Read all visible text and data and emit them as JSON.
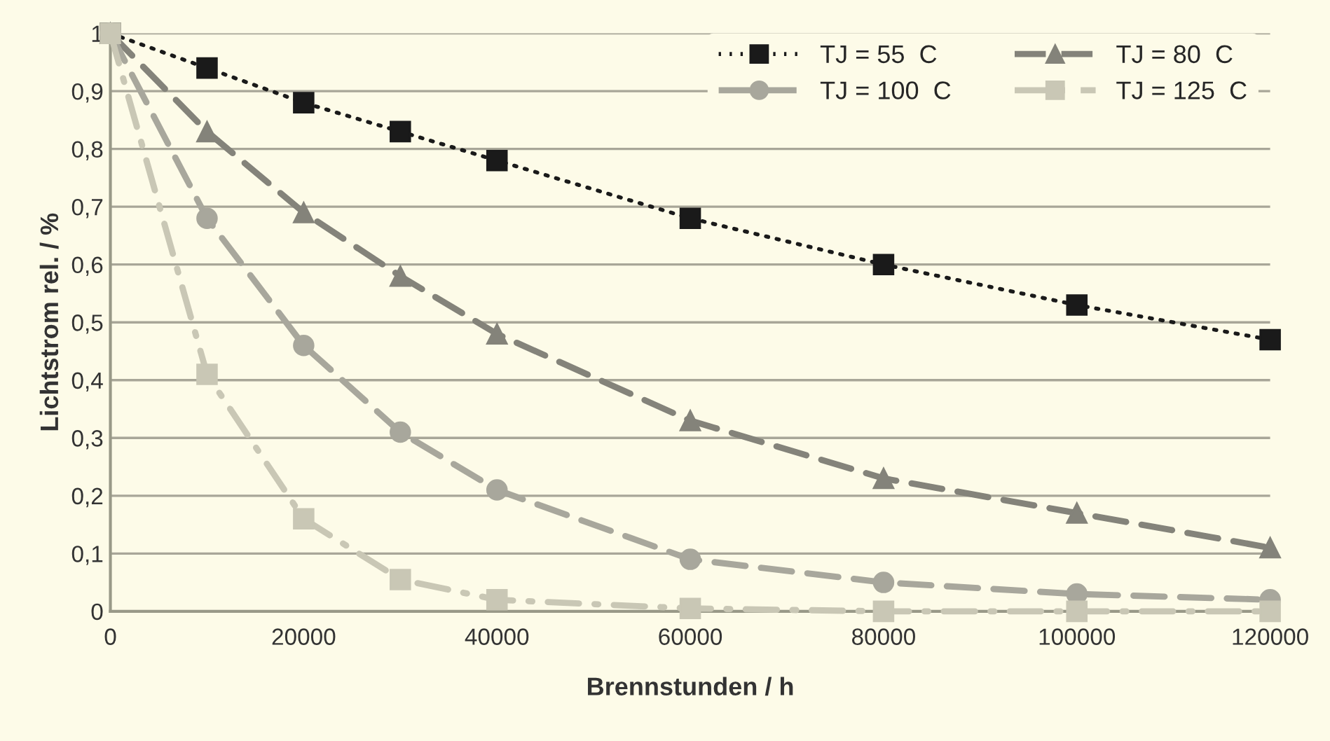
{
  "chart_data": {
    "type": "line",
    "xlabel": "Brennstunden / h",
    "ylabel": "Lichtstrom rel. / %",
    "x": [
      0,
      10000,
      20000,
      30000,
      40000,
      60000,
      80000,
      100000,
      120000
    ],
    "series": [
      {
        "name": "TJ = 55  C",
        "color": "#1a1a1a",
        "marker": "square",
        "line_style": "dotted",
        "values": [
          1,
          0.94,
          0.88,
          0.83,
          0.78,
          0.68,
          0.6,
          0.53,
          0.47
        ]
      },
      {
        "name": "TJ = 80  C",
        "color": "#84837a",
        "marker": "triangle",
        "line_style": "dashed",
        "values": [
          1,
          0.83,
          0.69,
          0.58,
          0.48,
          0.33,
          0.23,
          0.17,
          0.11
        ]
      },
      {
        "name": "TJ = 100  C",
        "color": "#a8a79c",
        "marker": "circle",
        "line_style": "dashed",
        "values": [
          1,
          0.68,
          0.46,
          0.31,
          0.21,
          0.09,
          0.05,
          0.03,
          0.02
        ]
      },
      {
        "name": "TJ = 125  C",
        "color": "#c9c7b5",
        "marker": "square",
        "line_style": "dashdot",
        "values": [
          1,
          0.41,
          0.16,
          0.055,
          0.02,
          0.005,
          0,
          0,
          0
        ]
      }
    ],
    "xlim": [
      0,
      120000
    ],
    "xticks": [
      0,
      20000,
      40000,
      60000,
      80000,
      100000,
      120000
    ],
    "ylim": [
      0,
      1
    ],
    "yticks": [
      0,
      {
        "value": 0.1,
        "label": "0,1"
      },
      {
        "value": 0.2,
        "label": "0,2"
      },
      {
        "value": 0.3,
        "label": "0,3"
      },
      {
        "value": 0.4,
        "label": "0,4"
      },
      {
        "value": 0.5,
        "label": "0,5"
      },
      {
        "value": 0.6,
        "label": "0,6"
      },
      {
        "value": 0.7,
        "label": "0,7"
      },
      {
        "value": 0.8,
        "label": "0,8"
      },
      {
        "value": 0.9,
        "label": "0,9"
      },
      1
    ],
    "grid": "y",
    "legend": "top right"
  }
}
